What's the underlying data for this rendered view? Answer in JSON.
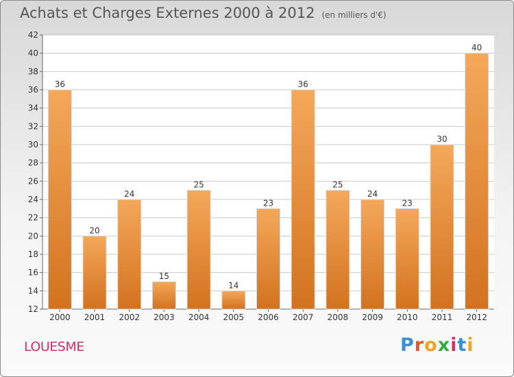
{
  "header": {
    "title": "Achats et Charges Externes 2000 à 2012",
    "subtitle": "(en milliers d'€)"
  },
  "footer": {
    "place": "LOUESME",
    "logo_text": "Proxiti"
  },
  "colors": {
    "bar_light": "#f4a85a",
    "bar_dark": "#d2721e",
    "grid": "#c8c8c8",
    "place": "#d6306c"
  },
  "chart_data": {
    "type": "bar",
    "title": "Achats et Charges Externes 2000 à 2012",
    "subtitle": "(en milliers d'€)",
    "xlabel": "",
    "ylabel": "",
    "categories": [
      "2000",
      "2001",
      "2002",
      "2003",
      "2004",
      "2005",
      "2006",
      "2007",
      "2008",
      "2009",
      "2010",
      "2011",
      "2012"
    ],
    "values": [
      36,
      20,
      24,
      15,
      25,
      14,
      23,
      36,
      25,
      24,
      23,
      30,
      40
    ],
    "ylim": [
      12,
      42
    ],
    "yticks": [
      12,
      14,
      16,
      18,
      20,
      22,
      24,
      26,
      28,
      30,
      32,
      34,
      36,
      38,
      40,
      42
    ],
    "grid": "horizontal",
    "data_labels": true
  }
}
